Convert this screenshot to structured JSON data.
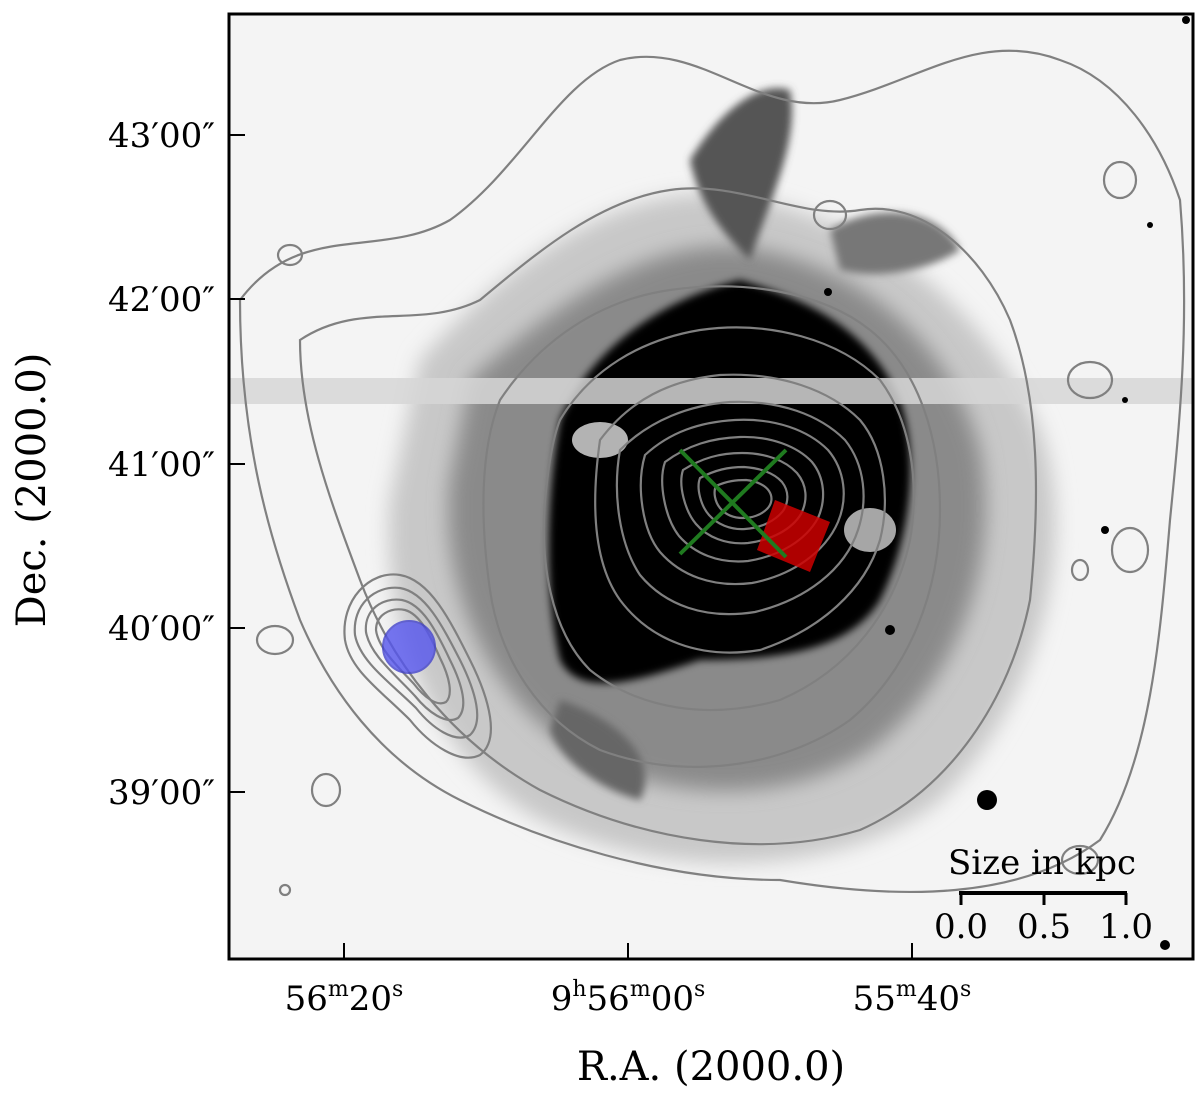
{
  "figure": {
    "image_description_free": true,
    "y_axis": {
      "title": "Dec. (2000.0)",
      "ticks": [
        "43′00″",
        "42′00″",
        "41′00″",
        "40′00″",
        "39′00″"
      ]
    },
    "x_axis": {
      "title": "R.A. (2000.0)",
      "ticks": [
        {
          "main": "56",
          "sup1": "m",
          "mid": "20",
          "sup2": "s",
          "pre": "",
          "presup": ""
        },
        {
          "main": "56",
          "sup1": "m",
          "mid": "00",
          "sup2": "s",
          "pre": "9",
          "presup": "h"
        },
        {
          "main": "55",
          "sup1": "m",
          "mid": "40",
          "sup2": "s",
          "pre": "",
          "presup": ""
        }
      ]
    },
    "scale_bar": {
      "title": "Size in kpc",
      "labels": [
        "0.0",
        "0.5",
        "1.0"
      ]
    },
    "markers": {
      "cross_color": "#1f7a1f",
      "square_color": "#cc0000",
      "circle_color": "#5555ee"
    }
  }
}
